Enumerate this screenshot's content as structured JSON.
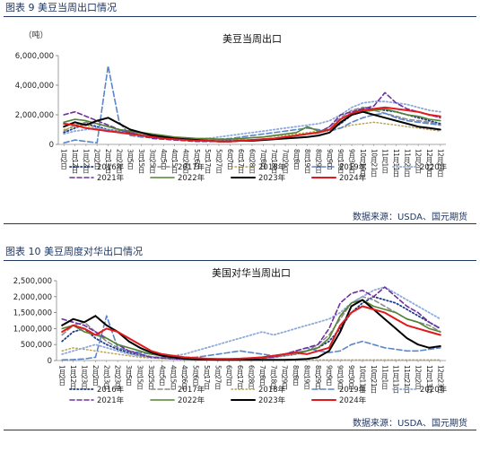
{
  "figures": [
    {
      "caption": "图表 9 美豆当周出口情况",
      "source": "数据来源：USDA、国元期货"
    },
    {
      "caption": "图表 10 美豆周度对华出口情况",
      "source": "数据来源：USDA、国元期货"
    }
  ],
  "chart_data": [
    {
      "type": "line",
      "title": "美豆当周出口",
      "ylabel": "（吨）",
      "ylim": [
        0,
        6000000
      ],
      "yticks": [
        "0",
        "2,000,000",
        "4,000,000",
        "6,000,000"
      ],
      "categories": [
        "1月2日",
        "1月12日",
        "1月22日",
        "2月2日",
        "2月13日",
        "2月23日",
        "3月5日",
        "3月15日",
        "3月25日",
        "4月5日",
        "4月15日",
        "4月26日",
        "5月6日",
        "5月17日",
        "5月27日",
        "6月7日",
        "6月17日",
        "6月28日",
        "7月8日",
        "7月18日",
        "7月29日",
        "8月8日",
        "8月19日",
        "8月29日",
        "9月9日",
        "9月19日",
        "9月30日",
        "10月10日",
        "10月21日",
        "11月1日",
        "11月11日",
        "11月21日",
        "12月2日",
        "12月13日",
        "12月23日"
      ],
      "legend_placement": "bottom",
      "series": [
        {
          "name": "2016年",
          "color": "#1f3c88",
          "dash": "1.5,2.5",
          "width": 1.8,
          "values": [
            800000,
            1100000,
            1400000,
            1200000,
            1000000,
            900000,
            800000,
            700000,
            600000,
            500000,
            400000,
            350000,
            300000,
            280000,
            250000,
            250000,
            280000,
            300000,
            350000,
            400000,
            500000,
            600000,
            700000,
            800000,
            1000000,
            1400000,
            2000000,
            2500000,
            2400000,
            2300000,
            2200000,
            2000000,
            1800000,
            1600000,
            1400000
          ]
        },
        {
          "name": "2017年",
          "color": "#8c8c8c",
          "dash": "5,3",
          "width": 1.6,
          "values": [
            900000,
            1300000,
            1500000,
            1400000,
            1200000,
            1000000,
            900000,
            700000,
            600000,
            500000,
            400000,
            350000,
            300000,
            300000,
            250000,
            250000,
            300000,
            300000,
            350000,
            400000,
            500000,
            600000,
            700000,
            800000,
            1200000,
            1800000,
            2300000,
            2500000,
            2300000,
            2100000,
            1900000,
            1700000,
            1600000,
            1500000,
            1300000
          ]
        },
        {
          "name": "2018年",
          "color": "#b8a14a",
          "dash": "1.5,2.5",
          "width": 1.4,
          "values": [
            1000000,
            1200000,
            1300000,
            1100000,
            1000000,
            900000,
            800000,
            700000,
            600000,
            500000,
            450000,
            400000,
            350000,
            300000,
            300000,
            350000,
            400000,
            450000,
            500000,
            550000,
            600000,
            700000,
            800000,
            900000,
            1000000,
            1100000,
            1300000,
            1400000,
            1500000,
            1400000,
            1300000,
            1200000,
            1100000,
            1000000,
            900000
          ]
        },
        {
          "name": "2019年",
          "color": "#5b86c9",
          "dash": "6,3",
          "width": 1.6,
          "values": [
            100000,
            300000,
            200000,
            100000,
            5300000,
            1500000,
            600000,
            500000,
            450000,
            400000,
            350000,
            350000,
            300000,
            300000,
            350000,
            400000,
            500000,
            600000,
            700000,
            800000,
            900000,
            1000000,
            1100000,
            1000000,
            900000,
            1100000,
            1500000,
            1800000,
            2000000,
            2100000,
            1800000,
            1600000,
            1500000,
            1400000,
            1300000
          ]
        },
        {
          "name": "2020年",
          "color": "#8fa9d9",
          "dash": "1.5,2.5",
          "width": 1.8,
          "values": [
            700000,
            900000,
            1000000,
            1100000,
            1000000,
            900000,
            700000,
            600000,
            500000,
            450000,
            400000,
            350000,
            300000,
            400000,
            500000,
            600000,
            700000,
            800000,
            900000,
            1000000,
            1100000,
            1200000,
            1300000,
            1400000,
            1600000,
            2000000,
            2500000,
            2800000,
            2900000,
            2900000,
            2800000,
            2700000,
            2500000,
            2300000,
            2200000
          ]
        },
        {
          "name": "2021年",
          "color": "#7030a0",
          "dash": "5,3",
          "width": 1.6,
          "values": [
            2000000,
            2200000,
            1900000,
            1600000,
            1300000,
            1000000,
            800000,
            600000,
            400000,
            350000,
            300000,
            250000,
            200000,
            200000,
            200000,
            200000,
            250000,
            300000,
            350000,
            400000,
            500000,
            600000,
            700000,
            800000,
            1200000,
            2000000,
            2200000,
            2400000,
            2600000,
            3500000,
            2800000,
            2400000,
            2200000,
            2000000,
            1800000
          ]
        },
        {
          "name": "2022年",
          "color": "#548235",
          "dash": "",
          "width": 1.6,
          "values": [
            1500000,
            1700000,
            1600000,
            1400000,
            1200000,
            1000000,
            900000,
            800000,
            700000,
            600000,
            500000,
            450000,
            400000,
            400000,
            350000,
            350000,
            400000,
            450000,
            500000,
            600000,
            700000,
            800000,
            1200000,
            900000,
            1000000,
            1500000,
            2000000,
            2200000,
            2300000,
            2400000,
            2200000,
            2000000,
            1900000,
            1700000,
            1600000
          ]
        },
        {
          "name": "2023年",
          "color": "#000000",
          "dash": "",
          "width": 2.0,
          "values": [
            1200000,
            1500000,
            1300000,
            1600000,
            1800000,
            1400000,
            1000000,
            800000,
            600000,
            500000,
            400000,
            350000,
            300000,
            250000,
            200000,
            200000,
            250000,
            250000,
            300000,
            350000,
            400000,
            450000,
            500000,
            600000,
            800000,
            1500000,
            2000000,
            2200000,
            2000000,
            1800000,
            1600000,
            1400000,
            1200000,
            1100000,
            1000000
          ]
        },
        {
          "name": "2024年",
          "color": "#e0191c",
          "dash": "",
          "width": 2.0,
          "values": [
            1400000,
            1300000,
            1100000,
            1000000,
            900000,
            800000,
            700000,
            600000,
            500000,
            400000,
            350000,
            300000,
            250000,
            250000,
            200000,
            200000,
            250000,
            300000,
            350000,
            400000,
            500000,
            600000,
            700000,
            800000,
            1000000,
            1700000,
            2100000,
            2300000,
            2400000,
            2500000,
            2400000,
            2300000,
            2200000,
            2000000,
            1900000
          ]
        }
      ]
    },
    {
      "type": "line",
      "title": "美国对华当周出口",
      "ylabel": "（吨）",
      "ylim": [
        0,
        2500000
      ],
      "yticks": [
        "0",
        "500,000",
        "1,000,000",
        "1,500,000",
        "2,000,000",
        "2,500,000"
      ],
      "categories": [
        "1月2日",
        "1月12日",
        "1月23日",
        "2月2日",
        "2月13日",
        "2月23日",
        "3月5日",
        "3月15日",
        "3月25日",
        "4月5日",
        "4月15日",
        "4月26日",
        "5月6日",
        "5月17日",
        "5月27日",
        "6月7日",
        "6月17日",
        "6月28日",
        "7月8日",
        "7月18日",
        "7月29日",
        "8月8日",
        "8月19日",
        "8月29日",
        "9月9日",
        "9月19日",
        "9月30日",
        "10月11日",
        "10月21日",
        "11月1日",
        "11月11日",
        "11月21日",
        "12月2日",
        "12月13日",
        "12月23日"
      ],
      "legend_placement": "bottom",
      "series": [
        {
          "name": "2016年",
          "color": "#1f3c88",
          "dash": "1.5,2.5",
          "width": 1.8,
          "values": [
            600000,
            900000,
            1000000,
            700000,
            500000,
            350000,
            250000,
            150000,
            100000,
            80000,
            50000,
            40000,
            30000,
            30000,
            30000,
            30000,
            40000,
            50000,
            80000,
            100000,
            150000,
            200000,
            300000,
            400000,
            600000,
            1000000,
            1500000,
            1800000,
            2000000,
            1900000,
            1800000,
            1600000,
            1400000,
            1200000,
            1000000
          ]
        },
        {
          "name": "2017年",
          "color": "#8c8c8c",
          "dash": "5,3",
          "width": 1.6,
          "values": [
            800000,
            1100000,
            1200000,
            900000,
            600000,
            400000,
            300000,
            200000,
            120000,
            100000,
            80000,
            60000,
            50000,
            40000,
            40000,
            40000,
            50000,
            60000,
            80000,
            100000,
            150000,
            200000,
            300000,
            500000,
            800000,
            1300000,
            1800000,
            2000000,
            1900000,
            1700000,
            1500000,
            1300000,
            1200000,
            1100000,
            900000
          ]
        },
        {
          "name": "2018年",
          "color": "#b8a14a",
          "dash": "1.5,2.5",
          "width": 1.4,
          "values": [
            300000,
            400000,
            350000,
            300000,
            250000,
            200000,
            150000,
            100000,
            80000,
            60000,
            50000,
            40000,
            30000,
            20000,
            20000,
            20000,
            20000,
            20000,
            20000,
            20000,
            20000,
            20000,
            20000,
            20000,
            20000,
            20000,
            20000,
            20000,
            20000,
            20000,
            20000,
            20000,
            20000,
            20000,
            20000
          ]
        },
        {
          "name": "2019年",
          "color": "#5b86c9",
          "dash": "6,3",
          "width": 1.6,
          "values": [
            20000,
            30000,
            50000,
            100000,
            1400000,
            400000,
            300000,
            250000,
            200000,
            200000,
            150000,
            100000,
            100000,
            150000,
            200000,
            250000,
            300000,
            250000,
            200000,
            150000,
            200000,
            300000,
            400000,
            300000,
            250000,
            300000,
            500000,
            600000,
            500000,
            400000,
            350000,
            300000,
            300000,
            350000,
            400000
          ]
        },
        {
          "name": "2020年",
          "color": "#8fa9d9",
          "dash": "1.5,2.5",
          "width": 1.8,
          "values": [
            200000,
            300000,
            400000,
            500000,
            400000,
            300000,
            200000,
            150000,
            100000,
            100000,
            150000,
            200000,
            300000,
            400000,
            500000,
            600000,
            700000,
            800000,
            900000,
            800000,
            900000,
            1000000,
            1100000,
            1200000,
            1300000,
            1500000,
            1800000,
            2000000,
            2200000,
            2300000,
            2100000,
            1900000,
            1700000,
            1500000,
            1300000
          ]
        },
        {
          "name": "2021年",
          "color": "#7030a0",
          "dash": "5,3",
          "width": 1.6,
          "values": [
            1300000,
            1200000,
            1100000,
            900000,
            700000,
            500000,
            300000,
            200000,
            100000,
            80000,
            60000,
            40000,
            30000,
            30000,
            30000,
            30000,
            40000,
            50000,
            80000,
            100000,
            200000,
            300000,
            400000,
            500000,
            1000000,
            1800000,
            2100000,
            2200000,
            2000000,
            2300000,
            2000000,
            1700000,
            1500000,
            1200000,
            1000000
          ]
        },
        {
          "name": "2022年",
          "color": "#548235",
          "dash": "",
          "width": 1.6,
          "values": [
            1000000,
            1100000,
            900000,
            800000,
            700000,
            500000,
            400000,
            300000,
            200000,
            150000,
            100000,
            80000,
            60000,
            50000,
            50000,
            50000,
            60000,
            80000,
            100000,
            150000,
            200000,
            250000,
            300000,
            400000,
            700000,
            1400000,
            1800000,
            1900000,
            1700000,
            1600000,
            1500000,
            1300000,
            1200000,
            1000000,
            900000
          ]
        },
        {
          "name": "2023年",
          "color": "#000000",
          "dash": "",
          "width": 2.0,
          "values": [
            1100000,
            1300000,
            1200000,
            1400000,
            1100000,
            900000,
            600000,
            400000,
            250000,
            150000,
            100000,
            60000,
            40000,
            30000,
            20000,
            20000,
            20000,
            20000,
            20000,
            20000,
            20000,
            30000,
            50000,
            100000,
            300000,
            900000,
            1700000,
            1900000,
            1600000,
            1300000,
            1000000,
            700000,
            500000,
            400000,
            450000
          ]
        },
        {
          "name": "2024年",
          "color": "#e0191c",
          "dash": "",
          "width": 2.0,
          "values": [
            900000,
            1100000,
            1000000,
            800000,
            1000000,
            900000,
            700000,
            500000,
            300000,
            200000,
            150000,
            100000,
            80000,
            60000,
            50000,
            50000,
            60000,
            80000,
            100000,
            150000,
            200000,
            250000,
            200000,
            300000,
            400000,
            1100000,
            1500000,
            1700000,
            1600000,
            1500000,
            1300000,
            1100000,
            1000000,
            900000,
            800000
          ]
        }
      ]
    }
  ]
}
